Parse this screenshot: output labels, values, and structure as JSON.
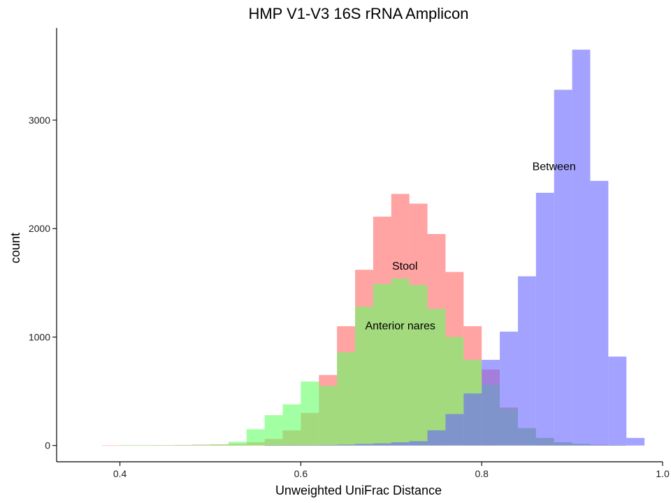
{
  "chart_data": {
    "type": "bar",
    "title": "HMP V1-V3 16S rRNA Amplicon",
    "xlabel": "Unweighted UniFrac Distance",
    "ylabel": "count",
    "xlim": [
      0.33,
      1.0
    ],
    "ylim": [
      -150,
      3850
    ],
    "xticks": [
      0.4,
      0.6,
      0.8,
      1.0
    ],
    "xtick_labels": [
      "0.4",
      "0.6",
      "0.8",
      "1.0"
    ],
    "yticks": [
      0,
      1000,
      2000,
      3000
    ],
    "ytick_labels": [
      "0",
      "1000",
      "2000",
      "3000"
    ],
    "grid": false,
    "legend": "none",
    "bin_width": 0.02,
    "bin_starts": [
      0.36,
      0.38,
      0.4,
      0.42,
      0.44,
      0.46,
      0.48,
      0.5,
      0.52,
      0.54,
      0.56,
      0.58,
      0.6,
      0.62,
      0.64,
      0.66,
      0.68,
      0.7,
      0.72,
      0.74,
      0.76,
      0.78,
      0.8,
      0.82,
      0.84,
      0.86,
      0.88,
      0.9,
      0.92,
      0.94,
      0.96
    ],
    "series": [
      {
        "key": "stool",
        "color": "#ff6666",
        "values": [
          0,
          1,
          2,
          2,
          3,
          5,
          8,
          10,
          15,
          30,
          60,
          140,
          300,
          650,
          1100,
          1620,
          2110,
          2320,
          2230,
          1950,
          1600,
          1100,
          700,
          350,
          160,
          70,
          30,
          15,
          8,
          3,
          0
        ]
      },
      {
        "key": "anterior_nares",
        "color": "#66ff66",
        "values": [
          0,
          0,
          1,
          1,
          2,
          3,
          6,
          10,
          35,
          150,
          280,
          380,
          590,
          550,
          860,
          1280,
          1490,
          1540,
          1480,
          1260,
          1000,
          790,
          560,
          340,
          160,
          70,
          30,
          15,
          5,
          2,
          0
        ]
      },
      {
        "key": "between",
        "color": "#6666ff",
        "values": [
          0,
          0,
          0,
          0,
          0,
          0,
          0,
          0,
          0,
          0,
          1,
          2,
          3,
          5,
          8,
          15,
          20,
          30,
          40,
          140,
          290,
          480,
          790,
          1050,
          1560,
          2330,
          3280,
          3650,
          2440,
          820,
          70
        ]
      }
    ],
    "annotations": [
      {
        "text": "Stool",
        "x": 0.715,
        "y": 1620
      },
      {
        "text": "Anterior nares",
        "x": 0.71,
        "y": 1070
      },
      {
        "text": "Between",
        "x": 0.88,
        "y": 2540
      }
    ]
  }
}
